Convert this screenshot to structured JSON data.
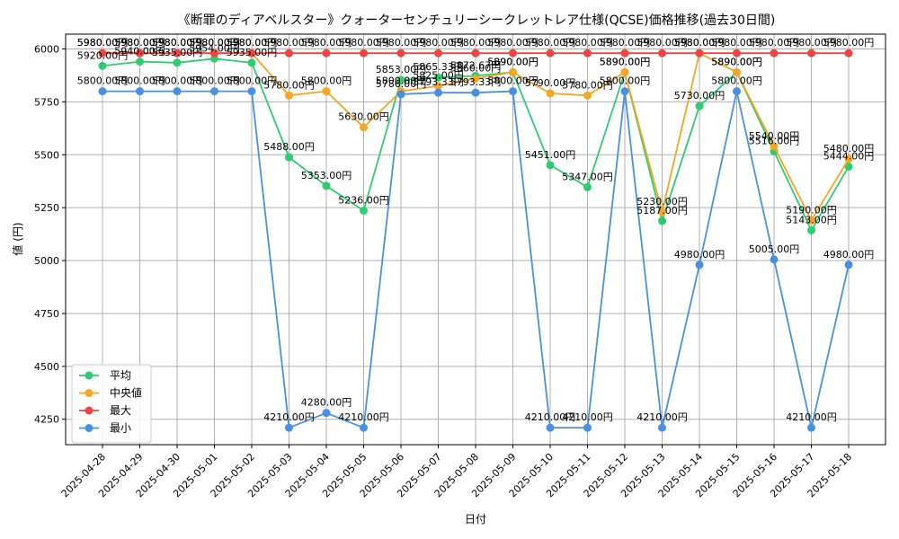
{
  "chart_data": {
    "type": "line",
    "title": "《断罪のディアベルスター》クォーターセンチュリーシークレットレア仕様(QCSE)価格推移(過去30日間)",
    "xlabel": "日付",
    "ylabel": "値 (円)",
    "ylim": [
      4130,
      6070
    ],
    "yticks": [
      4250,
      4500,
      4750,
      5000,
      5250,
      5500,
      5750,
      6000
    ],
    "grid": true,
    "legend_position": "lower-left",
    "label_suffix": "円",
    "categories": [
      "2025-04-28",
      "2025-04-29",
      "2025-04-30",
      "2025-05-01",
      "2025-05-02",
      "2025-05-03",
      "2025-05-04",
      "2025-05-05",
      "2025-05-06",
      "2025-05-07",
      "2025-05-08",
      "2025-05-09",
      "2025-05-10",
      "2025-05-11",
      "2025-05-12",
      "2025-05-13",
      "2025-05-14",
      "2025-05-15",
      "2025-05-16",
      "2025-05-17",
      "2025-05-18"
    ],
    "series": [
      {
        "name": "平均",
        "color": "#2ecc71",
        "values": [
          5920,
          5940,
          5935,
          5954,
          5935,
          5488,
          5353,
          5236,
          5853,
          5865.33,
          5872.67,
          5890,
          5451,
          5347,
          5890,
          5187,
          5730,
          5890,
          5516,
          5143,
          5444
        ]
      },
      {
        "name": "中央値",
        "color": "#f5a623",
        "values": [
          5980,
          5980,
          5980,
          5980,
          5980,
          5780,
          5800,
          5630,
          5800,
          5825,
          5860,
          5890,
          5790,
          5780,
          5890,
          5230,
          5980,
          5890,
          5540,
          5190,
          5480
        ]
      },
      {
        "name": "最大",
        "color": "#ef4444",
        "values": [
          5980,
          5980,
          5980,
          5980,
          5980,
          5980,
          5980,
          5980,
          5980,
          5980,
          5980,
          5980,
          5980,
          5980,
          5980,
          5980,
          5980,
          5980,
          5980,
          5980,
          5980
        ]
      },
      {
        "name": "最小",
        "color": "#4a90e2",
        "values": [
          5800,
          5800,
          5800,
          5800,
          5800,
          4210,
          4280,
          4210,
          5786,
          5793.33,
          5793.33,
          5800,
          4210,
          4210,
          5800,
          4210,
          4980,
          5800,
          5005,
          4210,
          4980
        ]
      }
    ]
  }
}
